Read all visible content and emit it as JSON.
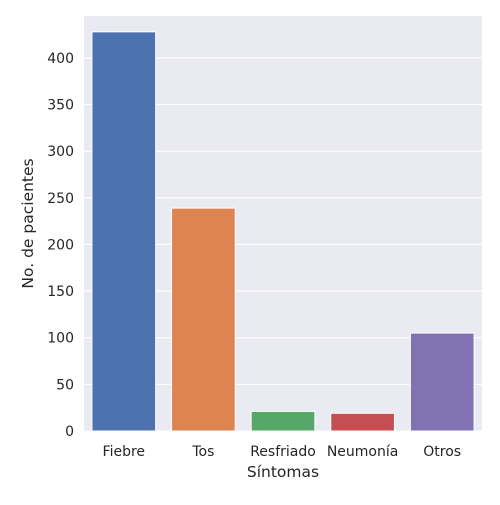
{
  "chart_data": {
    "type": "bar",
    "title": "",
    "xlabel": "Síntomas",
    "ylabel": "No. de pacientes",
    "categories": [
      "Fiebre",
      "Tos",
      "Resfriado",
      "Neumonía",
      "Otros"
    ],
    "values": [
      428,
      239,
      21,
      19,
      105
    ],
    "colors": [
      "#4c72b0",
      "#dd8452",
      "#55a868",
      "#c44e52",
      "#8172b3"
    ],
    "ylim": [
      0,
      445
    ],
    "yticks": [
      0,
      50,
      100,
      150,
      200,
      250,
      300,
      350,
      400
    ],
    "grid": true,
    "background": "#eaeaf2",
    "legend": "none"
  }
}
